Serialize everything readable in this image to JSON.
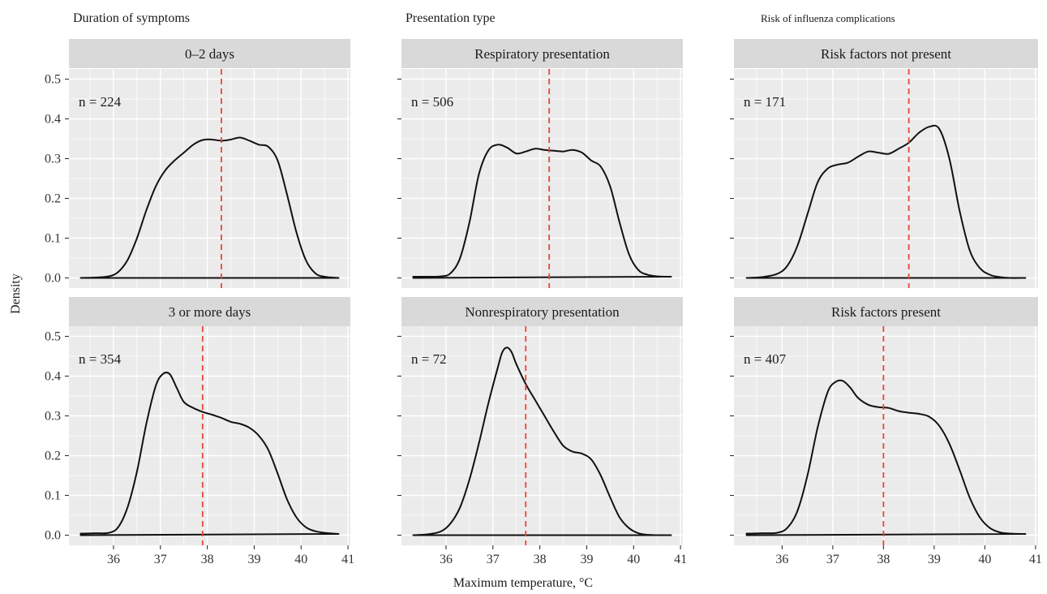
{
  "colors": {
    "mean_line": "#e8463a",
    "density_line": "#111111",
    "panel_bg": "#ebebeb",
    "strip_bg": "#d9d9d9"
  },
  "axis_labels": {
    "x": "Maximum temperature, °C",
    "y": "Density"
  },
  "group_titles": [
    "Duration of symptoms",
    "Presentation type",
    "Risk of influenza complications"
  ],
  "chart_data": [
    {
      "type": "area",
      "group": "Duration of symptoms",
      "panel": "0–2 days",
      "n_label": "n = 224",
      "mean": 38.3,
      "x": [
        35.3,
        35.6,
        35.9,
        36.1,
        36.3,
        36.5,
        36.7,
        36.9,
        37.1,
        37.3,
        37.5,
        37.7,
        37.9,
        38.1,
        38.3,
        38.5,
        38.7,
        38.9,
        39.1,
        39.3,
        39.5,
        39.7,
        39.9,
        40.1,
        40.3,
        40.5,
        40.8
      ],
      "y": [
        0.0,
        0.001,
        0.004,
        0.015,
        0.045,
        0.1,
        0.17,
        0.23,
        0.27,
        0.295,
        0.315,
        0.335,
        0.347,
        0.348,
        0.345,
        0.348,
        0.353,
        0.345,
        0.335,
        0.33,
        0.295,
        0.21,
        0.115,
        0.045,
        0.012,
        0.003,
        0.0
      ]
    },
    {
      "type": "area",
      "group": "Duration of symptoms",
      "panel": "3 or more days",
      "n_label": "n = 354",
      "mean": 37.9,
      "x": [
        35.3,
        35.6,
        35.9,
        36.1,
        36.3,
        36.5,
        36.7,
        36.9,
        37.05,
        37.2,
        37.35,
        37.5,
        37.7,
        37.9,
        38.1,
        38.3,
        38.5,
        38.7,
        38.9,
        39.1,
        39.3,
        39.5,
        39.7,
        39.9,
        40.1,
        40.3,
        40.5,
        40.8
      ],
      "y": [
        0.004,
        0.005,
        0.006,
        0.02,
        0.07,
        0.16,
        0.28,
        0.375,
        0.405,
        0.405,
        0.37,
        0.335,
        0.32,
        0.31,
        0.303,
        0.295,
        0.285,
        0.28,
        0.27,
        0.25,
        0.215,
        0.155,
        0.09,
        0.045,
        0.02,
        0.01,
        0.006,
        0.003
      ]
    },
    {
      "type": "area",
      "group": "Presentation type",
      "panel": "Respiratory presentation",
      "n_label": "n = 506",
      "mean": 38.2,
      "x": [
        35.3,
        35.6,
        35.9,
        36.1,
        36.3,
        36.5,
        36.7,
        36.9,
        37.1,
        37.3,
        37.5,
        37.7,
        37.9,
        38.1,
        38.3,
        38.5,
        38.7,
        38.9,
        39.1,
        39.3,
        39.5,
        39.7,
        39.9,
        40.1,
        40.3,
        40.5,
        40.8
      ],
      "y": [
        0.003,
        0.003,
        0.004,
        0.012,
        0.05,
        0.14,
        0.26,
        0.32,
        0.335,
        0.328,
        0.313,
        0.318,
        0.325,
        0.322,
        0.32,
        0.318,
        0.322,
        0.315,
        0.295,
        0.28,
        0.23,
        0.14,
        0.06,
        0.02,
        0.008,
        0.004,
        0.003
      ]
    },
    {
      "type": "area",
      "group": "Presentation type",
      "panel": "Nonrespiratory presentation",
      "n_label": "n = 72",
      "mean": 37.7,
      "x": [
        35.3,
        35.6,
        35.9,
        36.1,
        36.3,
        36.5,
        36.7,
        36.9,
        37.1,
        37.2,
        37.3,
        37.4,
        37.5,
        37.7,
        37.9,
        38.1,
        38.3,
        38.5,
        38.7,
        38.9,
        39.1,
        39.3,
        39.5,
        39.7,
        39.9,
        40.1,
        40.3,
        40.5,
        40.8
      ],
      "y": [
        0.0,
        0.002,
        0.01,
        0.03,
        0.07,
        0.14,
        0.23,
        0.33,
        0.42,
        0.46,
        0.472,
        0.46,
        0.43,
        0.38,
        0.34,
        0.3,
        0.26,
        0.225,
        0.21,
        0.205,
        0.19,
        0.15,
        0.095,
        0.045,
        0.018,
        0.005,
        0.001,
        0.0,
        0.0
      ]
    },
    {
      "type": "area",
      "group": "Risk of influenza complications",
      "panel": "Risk factors not present",
      "n_label": "n = 171",
      "mean": 38.5,
      "x": [
        35.3,
        35.6,
        35.9,
        36.1,
        36.3,
        36.5,
        36.7,
        36.9,
        37.1,
        37.3,
        37.5,
        37.7,
        37.9,
        38.1,
        38.3,
        38.5,
        38.7,
        38.9,
        39.1,
        39.3,
        39.5,
        39.7,
        39.9,
        40.1,
        40.3,
        40.5,
        40.8
      ],
      "y": [
        0.0,
        0.002,
        0.01,
        0.03,
        0.08,
        0.16,
        0.24,
        0.275,
        0.285,
        0.29,
        0.305,
        0.318,
        0.315,
        0.312,
        0.325,
        0.34,
        0.365,
        0.38,
        0.375,
        0.3,
        0.17,
        0.07,
        0.025,
        0.008,
        0.002,
        0.0,
        0.0
      ]
    },
    {
      "type": "area",
      "group": "Risk of influenza complications",
      "panel": "Risk factors present",
      "n_label": "n = 407",
      "mean": 38.0,
      "x": [
        35.3,
        35.6,
        35.9,
        36.1,
        36.3,
        36.5,
        36.7,
        36.9,
        37.05,
        37.2,
        37.35,
        37.5,
        37.7,
        37.9,
        38.1,
        38.3,
        38.5,
        38.7,
        38.9,
        39.1,
        39.3,
        39.5,
        39.7,
        39.9,
        40.1,
        40.3,
        40.5,
        40.8
      ],
      "y": [
        0.004,
        0.005,
        0.006,
        0.018,
        0.06,
        0.15,
        0.27,
        0.36,
        0.385,
        0.388,
        0.37,
        0.345,
        0.328,
        0.322,
        0.32,
        0.312,
        0.308,
        0.305,
        0.298,
        0.275,
        0.23,
        0.165,
        0.095,
        0.045,
        0.018,
        0.007,
        0.004,
        0.003
      ]
    }
  ],
  "scales": {
    "x_domain": [
      35.05,
      41.05
    ],
    "x_ticks": [
      36,
      37,
      38,
      39,
      40,
      41
    ],
    "y_domain": [
      -0.0255,
      0.5255
    ],
    "y_ticks": [
      0.0,
      0.1,
      0.2,
      0.3,
      0.4,
      0.5
    ]
  }
}
